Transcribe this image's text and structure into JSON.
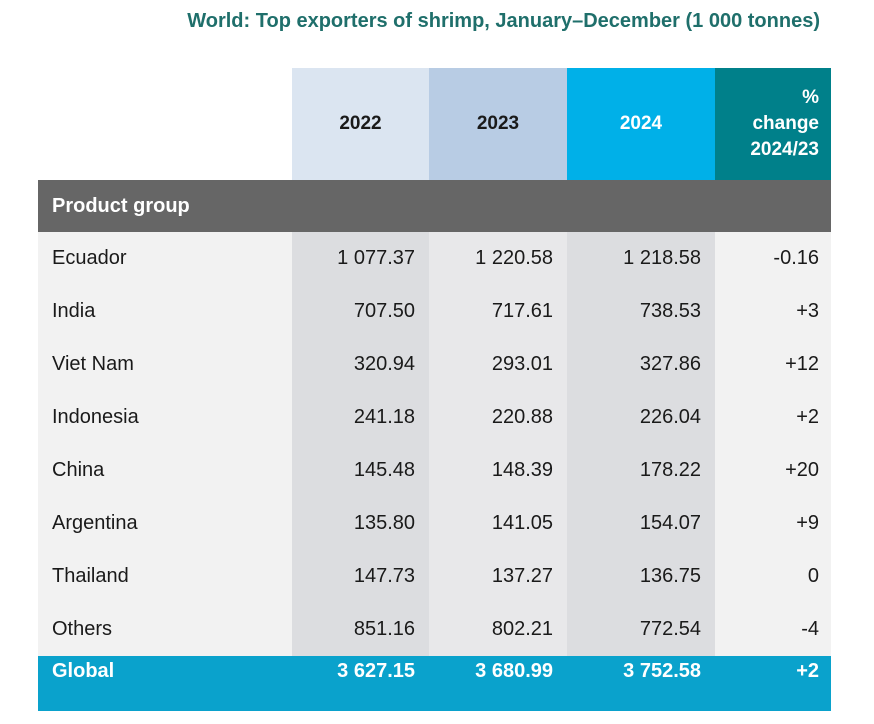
{
  "title": "World: Top exporters of shrimp, January–December (1 000 tonnes)",
  "chart_data": {
    "type": "table",
    "title": "World: Top exporters of shrimp, January–December (1 000 tonnes)",
    "columns": [
      "",
      "2022",
      "2023",
      "2024",
      "%\nchange\n2024/23"
    ],
    "group_label": "Product group",
    "rows": [
      {
        "label": "Ecuador",
        "values": [
          "1 077.37",
          "1 220.58",
          "1 218.58",
          "-0.16"
        ]
      },
      {
        "label": "India",
        "values": [
          "707.50",
          "717.61",
          "738.53",
          "+3"
        ]
      },
      {
        "label": "Viet Nam",
        "values": [
          "320.94",
          "293.01",
          "327.86",
          "+12"
        ]
      },
      {
        "label": "Indonesia",
        "values": [
          "241.18",
          "220.88",
          "226.04",
          "+2"
        ]
      },
      {
        "label": "China",
        "values": [
          "145.48",
          "148.39",
          "178.22",
          "+20"
        ]
      },
      {
        "label": "Argentina",
        "values": [
          "135.80",
          "141.05",
          "154.07",
          "+9"
        ]
      },
      {
        "label": "Thailand",
        "values": [
          "147.73",
          "137.27",
          "136.75",
          "0"
        ]
      },
      {
        "label": "Others",
        "values": [
          "851.16",
          "802.21",
          "772.54",
          "-4"
        ]
      }
    ],
    "total": {
      "label": "Global",
      "values": [
        "3 627.15",
        "3 680.99",
        "3 752.58",
        "+2"
      ]
    }
  },
  "colors": {
    "title": "#1f6f6b",
    "col_2022": "#dbe5f1",
    "col_2023": "#b8cce4",
    "col_2024": "#00b0e8",
    "col_change": "#00808a",
    "group_row": "#666666",
    "total_row": "#0aa2cc"
  }
}
